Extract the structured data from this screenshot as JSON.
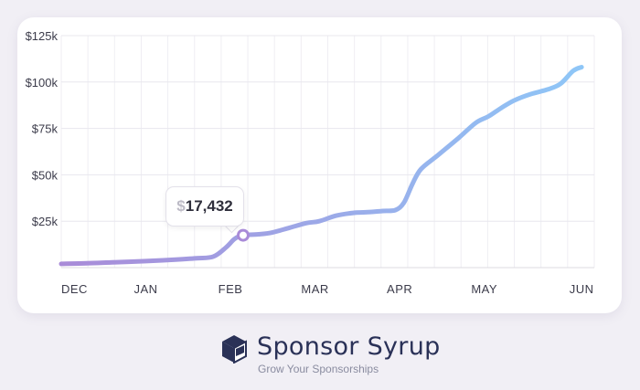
{
  "chart_data": {
    "type": "line",
    "x_labels": [
      "DEC",
      "JAN",
      "FEB",
      "MAR",
      "APR",
      "MAY",
      "JUN"
    ],
    "y_ticks": [
      {
        "value": 25000,
        "label": "$25k"
      },
      {
        "value": 50000,
        "label": "$50k"
      },
      {
        "value": 75000,
        "label": "$75k"
      },
      {
        "value": 100000,
        "label": "$100k"
      },
      {
        "value": 125000,
        "label": "$125k"
      }
    ],
    "ylim": [
      0,
      125000
    ],
    "xlim": [
      0,
      6.3
    ],
    "grid": true,
    "series": [
      {
        "points": [
          [
            0.0,
            2000
          ],
          [
            0.3,
            2300
          ],
          [
            0.6,
            2800
          ],
          [
            1.0,
            3500
          ],
          [
            1.3,
            4200
          ],
          [
            1.6,
            5000
          ],
          [
            1.8,
            6000
          ],
          [
            1.95,
            11000
          ],
          [
            2.05,
            15500
          ],
          [
            2.15,
            17432
          ],
          [
            2.35,
            18000
          ],
          [
            2.5,
            19000
          ],
          [
            2.7,
            21500
          ],
          [
            2.9,
            24000
          ],
          [
            3.05,
            25000
          ],
          [
            3.25,
            28000
          ],
          [
            3.45,
            29500
          ],
          [
            3.6,
            29800
          ],
          [
            3.8,
            30500
          ],
          [
            3.95,
            31000
          ],
          [
            4.05,
            35000
          ],
          [
            4.15,
            45000
          ],
          [
            4.25,
            53000
          ],
          [
            4.45,
            60500
          ],
          [
            4.7,
            70000
          ],
          [
            4.9,
            78000
          ],
          [
            5.05,
            81500
          ],
          [
            5.2,
            86000
          ],
          [
            5.35,
            90000
          ],
          [
            5.55,
            93500
          ],
          [
            5.75,
            96000
          ],
          [
            5.9,
            99000
          ],
          [
            6.05,
            106000
          ],
          [
            6.15,
            108000
          ]
        ],
        "color_start": "#a98bd8",
        "color_end": "#8ec8f8"
      }
    ],
    "highlight": {
      "x": 2.15,
      "y": 17432,
      "currency": "$",
      "label": "17,432"
    }
  },
  "brand": {
    "name": "Sponsor Syrup",
    "tagline": "Grow Your Sponsorships"
  },
  "icons": {
    "logo": "syrup-box-icon"
  }
}
